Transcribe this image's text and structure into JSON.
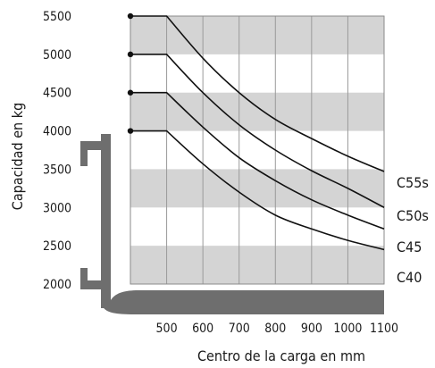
{
  "chart_data": {
    "type": "line",
    "xlabel": "Centro de la carga en mm",
    "ylabel": "Capacidad en kg",
    "xlim": [
      400,
      1100
    ],
    "ylim": [
      2000,
      5500
    ],
    "x_ticks": [
      "500",
      "600",
      "700",
      "800",
      "900",
      "1000",
      "1100"
    ],
    "y_ticks": [
      "5500",
      "5000",
      "4500",
      "4000",
      "3500",
      "3000",
      "2500",
      "2000"
    ],
    "grid": "vertical lines every 100 mm, alternating horizontal gray bands every 500 kg",
    "legend": "labels at right end of curves",
    "series": [
      {
        "name": "C55s",
        "x": [
          400,
          500,
          600,
          700,
          800,
          900,
          1000,
          1100
        ],
        "y": [
          5500,
          5500,
          4950,
          4500,
          4150,
          3900,
          3670,
          3470
        ]
      },
      {
        "name": "C50s",
        "x": [
          400,
          500,
          600,
          700,
          800,
          900,
          1000,
          1100
        ],
        "y": [
          5000,
          5000,
          4500,
          4080,
          3750,
          3480,
          3250,
          3000
        ]
      },
      {
        "name": "C45",
        "x": [
          400,
          500,
          600,
          700,
          800,
          900,
          1000,
          1100
        ],
        "y": [
          4500,
          4500,
          4050,
          3650,
          3350,
          3100,
          2900,
          2720
        ]
      },
      {
        "name": "C40",
        "x": [
          400,
          500,
          600,
          700,
          800,
          900,
          1000,
          1100
        ],
        "y": [
          4000,
          4000,
          3570,
          3200,
          2900,
          2720,
          2570,
          2450
        ]
      }
    ]
  }
}
